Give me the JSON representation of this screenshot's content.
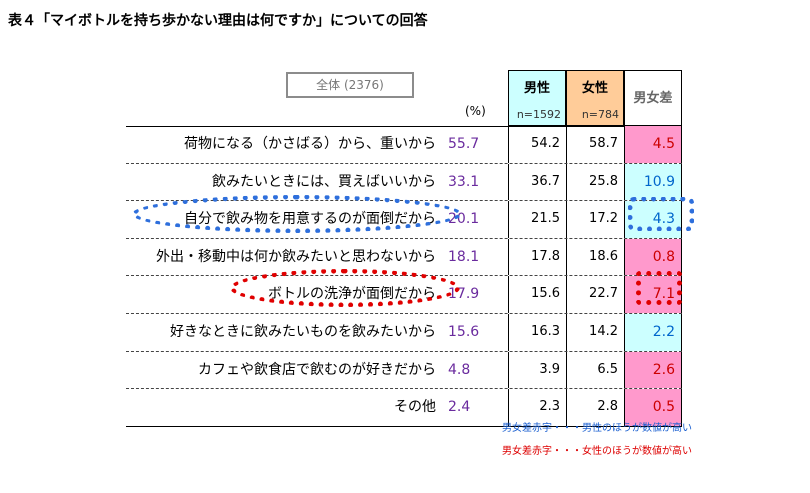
{
  "title": "表４「マイボトルを持ち歩かない理由は何ですか」についての回答",
  "total_label": "全体 (2376)",
  "pct_unit": "(%)",
  "headers": {
    "male": "男性",
    "male_n": "n=1592",
    "female": "女性",
    "female_n": "n=784",
    "diff": "男女差"
  },
  "colors": {
    "male_header": "#ccffff",
    "female_header": "#ffcc99",
    "diff_male_higher": "#ccffff",
    "diff_female_higher": "#ff99cc",
    "total_text": "#6a2b9e",
    "highlight_blue": "#2e6fdc",
    "highlight_red": "#e00000"
  },
  "legend": {
    "blue": "男女差赤字・・・男性のほうが数値が高い",
    "red": "男女差赤字・・・女性のほうが数値が高い"
  },
  "chart_data": {
    "type": "table",
    "title": "表４「マイボトルを持ち歩かない理由は何ですか」についての回答",
    "columns": [
      "全体 (2376)",
      "男性 n=1592",
      "女性 n=784",
      "男女差"
    ],
    "rows": [
      {
        "label": "荷物になる（かさばる）から、重いから",
        "total": "55.7",
        "male": "54.2",
        "female": "58.7",
        "diff": "4.5",
        "diff_side": "female"
      },
      {
        "label": "飲みたいときには、買えばいいから",
        "total": "33.1",
        "male": "36.7",
        "female": "25.8",
        "diff": "10.9",
        "diff_side": "male"
      },
      {
        "label": "自分で飲み物を用意するのが面倒だから",
        "total": "20.1",
        "male": "21.5",
        "female": "17.2",
        "diff": "4.3",
        "diff_side": "male"
      },
      {
        "label": "外出・移動中は何か飲みたいと思わないから",
        "total": "18.1",
        "male": "17.8",
        "female": "18.6",
        "diff": "0.8",
        "diff_side": "female"
      },
      {
        "label": "ボトルの洗浄が面倒だから",
        "total": "17.9",
        "male": "15.6",
        "female": "22.7",
        "diff": "7.1",
        "diff_side": "female"
      },
      {
        "label": "好きなときに飲みたいものを飲みたいから",
        "total": "15.6",
        "male": "16.3",
        "female": "14.2",
        "diff": "2.2",
        "diff_side": "male"
      },
      {
        "label": "カフェや飲食店で飲むのが好きだから",
        "total": "4.8",
        "male": "3.9",
        "female": "6.5",
        "diff": "2.6",
        "diff_side": "female"
      },
      {
        "label": "その他",
        "total": "2.4",
        "male": "2.3",
        "female": "2.8",
        "diff": "0.5",
        "diff_side": "female"
      }
    ],
    "highlighted_rows": [
      2,
      4
    ]
  }
}
